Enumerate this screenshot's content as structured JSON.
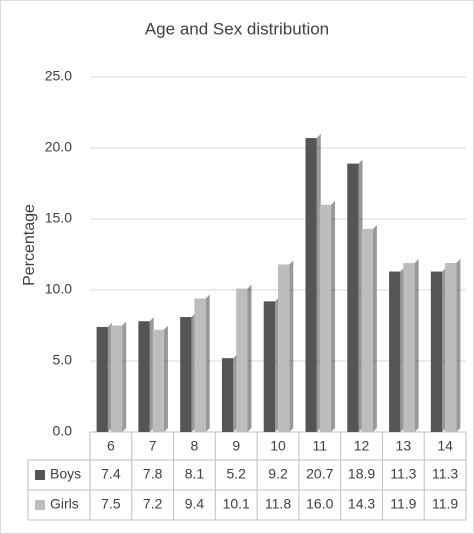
{
  "chart_data": {
    "type": "bar",
    "title": "Age and Sex distribution",
    "y_label": "Percentage",
    "categories": [
      "6",
      "7",
      "8",
      "9",
      "10",
      "11",
      "12",
      "13",
      "14"
    ],
    "series": [
      {
        "name": "Boys",
        "color": "#555555",
        "values": [
          7.4,
          7.8,
          8.1,
          5.2,
          9.2,
          20.7,
          18.9,
          11.3,
          11.3
        ]
      },
      {
        "name": "Girls",
        "color": "#bdbdbd",
        "values": [
          7.5,
          7.2,
          9.4,
          10.1,
          11.8,
          16.0,
          14.3,
          11.9,
          11.9
        ],
        "value_labels": [
          "7.5",
          "7.2",
          "9.4",
          "10.1",
          "11.8",
          "16.0",
          "14.3",
          "11.9",
          "11.9"
        ]
      }
    ],
    "ylim": [
      0,
      25
    ],
    "yticks": [
      {
        "value": 0,
        "label": "0.0"
      },
      {
        "value": 5,
        "label": "5.0"
      },
      {
        "value": 10,
        "label": "10.0"
      },
      {
        "value": 15,
        "label": "15.0"
      },
      {
        "value": 20,
        "label": "20.0"
      },
      {
        "value": 25,
        "label": "25.0"
      }
    ],
    "grid": true
  }
}
